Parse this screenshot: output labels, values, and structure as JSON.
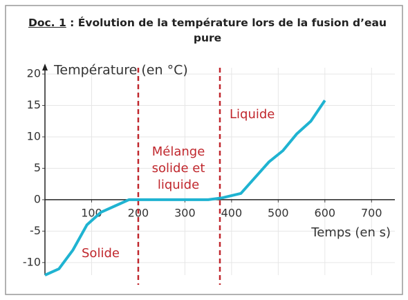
{
  "chart_data": {
    "type": "line",
    "title_prefix": "Doc. 1",
    "title": ": Évolution de la température lors de la fusion d’eau pure",
    "ylabel": "Température (en °C)",
    "xlabel": "Temps (en s)",
    "x": [
      0,
      30,
      60,
      90,
      120,
      150,
      180,
      200,
      300,
      350,
      380,
      420,
      450,
      480,
      510,
      540,
      570,
      600
    ],
    "values": [
      -12,
      -11,
      -8,
      -4,
      -2,
      -1,
      0,
      0,
      0,
      0,
      0.3,
      1,
      3.5,
      6,
      7.8,
      10.5,
      12.5,
      15.8
    ],
    "color": "#1fb3d1",
    "xlim": [
      0,
      750
    ],
    "ylim": [
      -12,
      21
    ],
    "xticks": [
      100,
      200,
      300,
      400,
      500,
      600,
      700
    ],
    "yticks": [
      -10,
      -5,
      0,
      5,
      10,
      15,
      20
    ],
    "grid": true,
    "phase_boundaries": [
      200,
      375
    ],
    "boundary_color": "#c0272d",
    "annotations": {
      "solid": "Solide",
      "mix": [
        "Mélange",
        "solide et",
        "liquide"
      ],
      "liquid": "Liquide"
    }
  }
}
